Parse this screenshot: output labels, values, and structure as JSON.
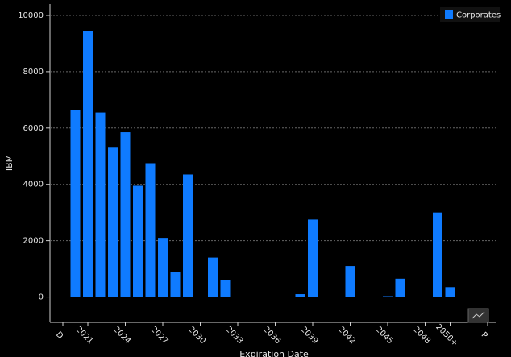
{
  "chart_data": {
    "type": "bar",
    "x_label": "Expiration Date",
    "y_label": "IBM",
    "categories": [
      "D",
      null,
      "2021",
      null,
      null,
      "2024",
      null,
      null,
      "2027",
      null,
      null,
      "2030",
      null,
      null,
      "2033",
      null,
      null,
      "2036",
      null,
      null,
      "2039",
      null,
      null,
      "2042",
      null,
      null,
      "2045",
      null,
      null,
      "2048",
      null,
      "2050+",
      null,
      null,
      "P"
    ],
    "series": [
      {
        "name": "Corporates",
        "color": "#0f7bff",
        "values": [
          null,
          6650,
          9450,
          6550,
          5300,
          5850,
          3950,
          4750,
          2100,
          900,
          4350,
          null,
          1400,
          600,
          null,
          null,
          null,
          null,
          null,
          100,
          2750,
          null,
          null,
          1100,
          null,
          null,
          30,
          650,
          null,
          null,
          3000,
          350,
          null,
          null,
          null
        ]
      }
    ],
    "ylim": [
      -900,
      10400
    ],
    "yticks": [
      0,
      2000,
      4000,
      6000,
      8000,
      10000
    ],
    "grid": true,
    "legend": "top-right"
  }
}
